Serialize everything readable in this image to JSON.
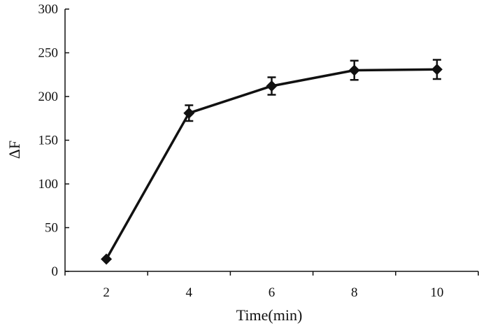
{
  "chart_data": {
    "type": "line",
    "title": "",
    "xlabel": "Time(min)",
    "ylabel": "ΔF",
    "x": [
      2,
      4,
      6,
      8,
      10
    ],
    "x_ticks": [
      "2",
      "4",
      "6",
      "8",
      "10"
    ],
    "y_ticks": [
      "0",
      "50",
      "100",
      "150",
      "200",
      "250",
      "300"
    ],
    "xlim": [
      1,
      11
    ],
    "ylim": [
      0,
      300
    ],
    "grid": false,
    "legend": "none",
    "series": [
      {
        "values": [
          14,
          181,
          212,
          230,
          231
        ],
        "error": [
          0,
          9,
          10,
          11,
          11
        ],
        "marker": "diamond",
        "color": "#111111"
      }
    ]
  }
}
